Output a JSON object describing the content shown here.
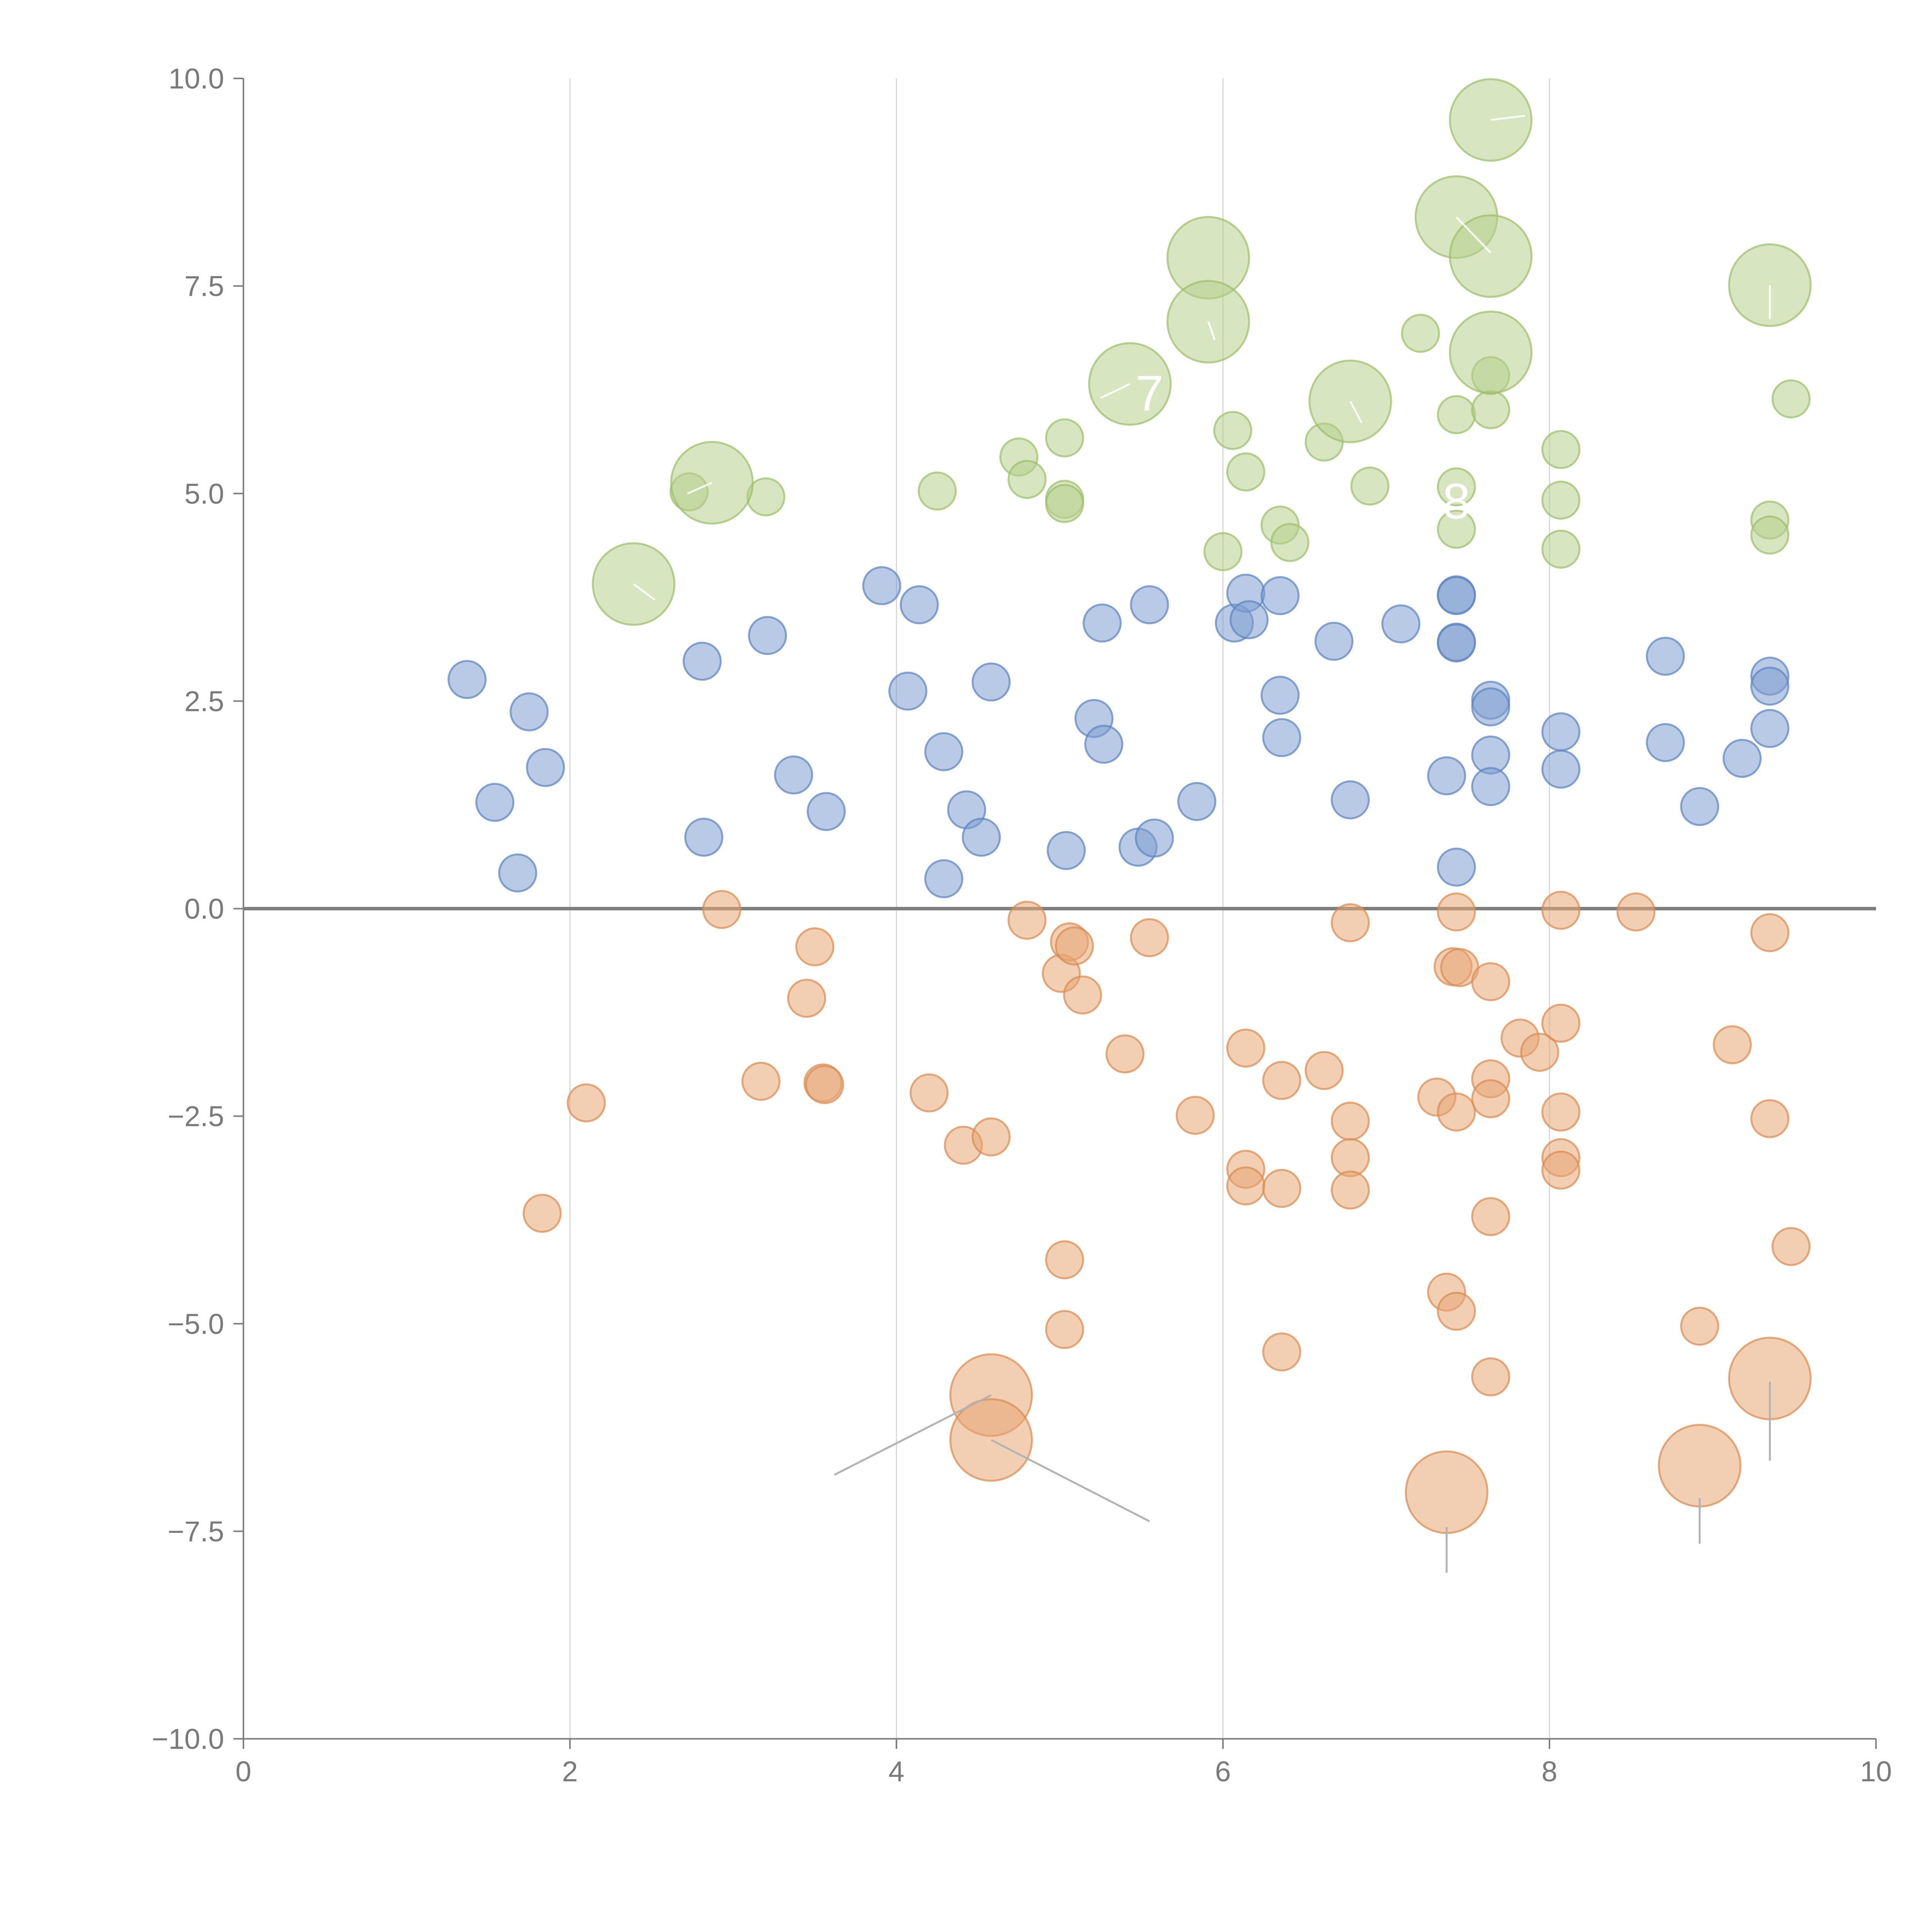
{
  "chart_data": {
    "type": "scatter",
    "title": "",
    "xlabel": "",
    "ylabel": "",
    "xlim": [
      0,
      10
    ],
    "ylim": [
      -10,
      10
    ],
    "x_ticks": [
      "0",
      "2",
      "4",
      "6",
      "8",
      "10"
    ],
    "y_ticks": [
      "10.0",
      "7.5",
      "5.0",
      "2.5",
      "0.0",
      "−2.5",
      "−5.0",
      "−7.5",
      "−10.0"
    ],
    "x_tick_values": [
      0,
      2,
      4,
      6,
      8,
      10
    ],
    "y_tick_values": [
      10,
      7.5,
      5,
      2.5,
      0,
      -2.5,
      -5,
      -7.5,
      -10
    ],
    "grid": "vertical",
    "reference_line_y": 0,
    "bubble_sizes": {
      "small": 1,
      "large": 2.2
    },
    "series": [
      {
        "name": "blue",
        "color": "#7d9fd0",
        "stroke": "#5b82bd",
        "points": [
          [
            1.37,
            2.76
          ],
          [
            1.54,
            1.28
          ],
          [
            1.68,
            0.43
          ],
          [
            1.75,
            2.37
          ],
          [
            1.85,
            1.7
          ],
          [
            2.81,
            2.98
          ],
          [
            2.82,
            0.86
          ],
          [
            3.21,
            3.29
          ],
          [
            3.37,
            1.61
          ],
          [
            3.57,
            1.17
          ],
          [
            3.91,
            3.89
          ],
          [
            4.07,
            2.62
          ],
          [
            4.14,
            3.66
          ],
          [
            4.29,
            1.89
          ],
          [
            4.29,
            0.36
          ],
          [
            4.43,
            1.19
          ],
          [
            4.52,
            0.86
          ],
          [
            4.58,
            2.73
          ],
          [
            5.04,
            0.7
          ],
          [
            5.21,
            2.29
          ],
          [
            5.26,
            3.44
          ],
          [
            5.27,
            1.98
          ],
          [
            5.48,
            0.74
          ],
          [
            5.55,
            3.66
          ],
          [
            5.58,
            0.85
          ],
          [
            5.84,
            1.29
          ],
          [
            6.07,
            3.44
          ],
          [
            6.14,
            3.8
          ],
          [
            6.16,
            3.48
          ],
          [
            6.35,
            3.77
          ],
          [
            6.35,
            2.57
          ],
          [
            6.36,
            2.06
          ],
          [
            6.68,
            3.22
          ],
          [
            6.78,
            1.31
          ],
          [
            7.09,
            3.43
          ],
          [
            7.37,
            1.6
          ],
          [
            7.43,
            3.78
          ],
          [
            7.43,
            3.77
          ],
          [
            7.43,
            3.21
          ],
          [
            7.43,
            3.2
          ],
          [
            7.43,
            0.5
          ],
          [
            7.64,
            2.51
          ],
          [
            7.64,
            2.43
          ],
          [
            7.64,
            1.85
          ],
          [
            7.64,
            1.47
          ],
          [
            8.07,
            2.13
          ],
          [
            8.07,
            1.68
          ],
          [
            8.71,
            3.04
          ],
          [
            8.71,
            2.0
          ],
          [
            8.92,
            1.23
          ],
          [
            9.18,
            1.81
          ],
          [
            9.35,
            2.8
          ],
          [
            9.35,
            2.68
          ],
          [
            9.35,
            2.17
          ]
        ],
        "size": "small"
      },
      {
        "name": "orange",
        "color": "#e8a574",
        "stroke": "#d98a50",
        "points": [
          [
            1.83,
            -3.67
          ],
          [
            2.1,
            -2.34
          ],
          [
            2.93,
            -0.01
          ],
          [
            3.17,
            -2.08
          ],
          [
            3.45,
            -1.08
          ],
          [
            3.5,
            -0.46
          ],
          [
            3.55,
            -2.1
          ],
          [
            3.56,
            -2.12
          ],
          [
            4.2,
            -2.22
          ],
          [
            4.41,
            -2.85
          ],
          [
            4.58,
            -2.75
          ],
          [
            4.8,
            -0.14
          ],
          [
            5.01,
            -0.78
          ],
          [
            5.06,
            -0.4
          ],
          [
            5.09,
            -0.45
          ],
          [
            5.14,
            -1.04
          ],
          [
            5.03,
            -4.23
          ],
          [
            5.03,
            -5.07
          ],
          [
            5.4,
            -1.75
          ],
          [
            5.55,
            -0.35
          ],
          [
            5.83,
            -2.49
          ],
          [
            6.14,
            -1.68
          ],
          [
            6.14,
            -3.14
          ],
          [
            6.14,
            -3.34
          ],
          [
            6.36,
            -2.07
          ],
          [
            6.36,
            -3.37
          ],
          [
            6.36,
            -5.34
          ],
          [
            6.62,
            -1.95
          ],
          [
            6.78,
            -0.17
          ],
          [
            6.78,
            -2.56
          ],
          [
            6.78,
            -3.0
          ],
          [
            6.78,
            -3.39
          ],
          [
            7.31,
            -2.27
          ],
          [
            7.37,
            -4.62
          ],
          [
            7.41,
            -0.7
          ],
          [
            7.45,
            -0.71
          ],
          [
            7.43,
            -0.04
          ],
          [
            7.43,
            -2.45
          ],
          [
            7.43,
            -4.85
          ],
          [
            7.64,
            -0.88
          ],
          [
            7.64,
            -2.05
          ],
          [
            7.64,
            -2.29
          ],
          [
            7.64,
            -3.71
          ],
          [
            7.64,
            -5.64
          ],
          [
            7.82,
            -1.56
          ],
          [
            7.94,
            -1.73
          ],
          [
            8.07,
            -0.02
          ],
          [
            8.07,
            -1.38
          ],
          [
            8.07,
            -2.45
          ],
          [
            8.07,
            -3.0
          ],
          [
            8.07,
            -3.15
          ],
          [
            8.53,
            -0.04
          ],
          [
            8.92,
            -5.03
          ],
          [
            9.12,
            -1.64
          ],
          [
            9.35,
            -0.29
          ],
          [
            9.35,
            -2.53
          ],
          [
            9.48,
            -4.07
          ]
        ],
        "size": "small",
        "large_points": [
          [
            4.58,
            -5.86
          ],
          [
            4.58,
            -6.4
          ],
          [
            7.37,
            -7.03
          ],
          [
            8.92,
            -6.71
          ],
          [
            9.35,
            -5.66
          ]
        ]
      },
      {
        "name": "green",
        "color": "#b7d08d",
        "stroke": "#9bbd68",
        "points": [
          [
            2.73,
            5.02
          ],
          [
            3.2,
            4.96
          ],
          [
            4.25,
            5.03
          ],
          [
            4.75,
            5.44
          ],
          [
            4.8,
            5.17
          ],
          [
            5.03,
            5.67
          ],
          [
            5.03,
            4.93
          ],
          [
            5.03,
            4.88
          ],
          [
            6.0,
            4.3
          ],
          [
            6.06,
            5.76
          ],
          [
            6.14,
            5.26
          ],
          [
            6.35,
            4.62
          ],
          [
            6.41,
            4.41
          ],
          [
            6.62,
            5.62
          ],
          [
            6.9,
            5.09
          ],
          [
            7.21,
            6.93
          ],
          [
            7.43,
            5.95
          ],
          [
            7.43,
            5.08
          ],
          [
            7.43,
            4.57
          ],
          [
            7.64,
            6.42
          ],
          [
            7.64,
            6.01
          ],
          [
            8.07,
            5.53
          ],
          [
            8.07,
            4.92
          ],
          [
            8.07,
            4.33
          ],
          [
            9.35,
            4.68
          ],
          [
            9.35,
            4.5
          ],
          [
            9.48,
            6.14
          ]
        ],
        "size": "small",
        "large_points": [
          [
            2.39,
            3.91
          ],
          [
            2.87,
            5.13
          ],
          [
            5.43,
            6.32
          ],
          [
            5.91,
            7.84
          ],
          [
            5.91,
            7.07
          ],
          [
            6.78,
            6.11
          ],
          [
            7.43,
            8.33
          ],
          [
            7.64,
            9.5
          ],
          [
            7.64,
            7.86
          ],
          [
            7.64,
            6.7
          ],
          [
            9.35,
            7.51
          ]
        ]
      }
    ],
    "annotations": [
      {
        "label": "7",
        "x": 5.55,
        "y": 6.0
      },
      {
        "label": "8",
        "x": 7.43,
        "y": 4.7
      }
    ]
  }
}
